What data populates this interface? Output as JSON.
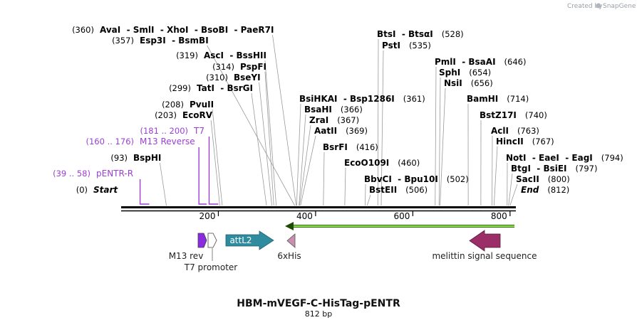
{
  "credit": "Created by",
  "brand": "SnapGene",
  "title": "HBM-mVEGF-C-HisTag-pENTR",
  "length": "812 bp",
  "sites": [
    {
      "num": "(360)",
      "label": "AvaI  - SmlI  - XhoI  - BsoBI  - PaeR7I",
      "pos": 360
    },
    {
      "num": "(357)",
      "label": "Esp3I  - BsmBI",
      "pos": 357
    },
    {
      "num": "(319)",
      "label": "AscI  - BssHII",
      "pos": 319
    },
    {
      "num": "(314)",
      "label": "PspFI",
      "pos": 314
    },
    {
      "num": "(310)",
      "label": "BseYI",
      "pos": 310
    },
    {
      "num": "(299)",
      "label": "TatI  - BsrGI",
      "pos": 299
    },
    {
      "num": "(208)",
      "label": "PvuII",
      "pos": 208
    },
    {
      "num": "(203)",
      "label": "EcoRV",
      "pos": 203
    },
    {
      "num": "(93)",
      "label": "BspHI",
      "pos": 93
    },
    {
      "num": "(0)",
      "label": "Start",
      "pos": 0
    },
    {
      "num": "(528)",
      "label": "BtsI  - BtsαI",
      "pos": 528
    },
    {
      "num": "(535)",
      "label": "PstI",
      "pos": 535
    },
    {
      "num": "(361)",
      "label": "BsiHKAI  - Bsp1286I",
      "pos": 361
    },
    {
      "num": "(366)",
      "label": "BsaHI",
      "pos": 366
    },
    {
      "num": "(367)",
      "label": "ZraI",
      "pos": 367
    },
    {
      "num": "(369)",
      "label": "AatII",
      "pos": 369
    },
    {
      "num": "(416)",
      "label": "BsrFI",
      "pos": 416
    },
    {
      "num": "(460)",
      "label": "EcoO109I",
      "pos": 460
    },
    {
      "num": "(502)",
      "label": "BbvCI  - Bpu10I",
      "pos": 502
    },
    {
      "num": "(506)",
      "label": "BstEII",
      "pos": 506
    },
    {
      "num": "(646)",
      "label": "PmlI  - BsaAI",
      "pos": 646
    },
    {
      "num": "(654)",
      "label": "SphI",
      "pos": 654
    },
    {
      "num": "(656)",
      "label": "NsiI",
      "pos": 656
    },
    {
      "num": "(714)",
      "label": "BamHI",
      "pos": 714
    },
    {
      "num": "(740)",
      "label": "BstZ17I",
      "pos": 740
    },
    {
      "num": "(763)",
      "label": "AclI",
      "pos": 763
    },
    {
      "num": "(767)",
      "label": "HincII",
      "pos": 767
    },
    {
      "num": "(794)",
      "label": "NotI  - EaeI  - EagI",
      "pos": 794
    },
    {
      "num": "(797)",
      "label": "BtgI  - BsiEI",
      "pos": 797
    },
    {
      "num": "(800)",
      "label": "SacII",
      "pos": 800
    },
    {
      "num": "(812)",
      "label": "End",
      "pos": 812
    }
  ],
  "primers": [
    {
      "num": "(181 .. 200)",
      "label": "T7",
      "start": 181,
      "end": 200
    },
    {
      "num": "(160 .. 176)",
      "label": "M13 Reverse",
      "start": 160,
      "end": 176
    },
    {
      "num": "(39 .. 58)",
      "label": "pENTR-R",
      "start": 39,
      "end": 58
    }
  ],
  "ticks": [
    {
      "label": "200",
      "pos": 200
    },
    {
      "label": "400",
      "pos": 400
    },
    {
      "label": "600",
      "pos": 600
    },
    {
      "label": "800",
      "pos": 800
    }
  ],
  "features": [
    {
      "name": "M13 rev",
      "color": "#8a2be2"
    },
    {
      "name": "T7 promoter",
      "color": "#ffffff"
    },
    {
      "name": "attL2",
      "color": "#2f8b9e"
    },
    {
      "name": "6xHis",
      "color": "#c98fb0"
    },
    {
      "name": "melittin signal sequence",
      "color": "#9b2e66"
    }
  ],
  "orf_color": "#5cb800"
}
